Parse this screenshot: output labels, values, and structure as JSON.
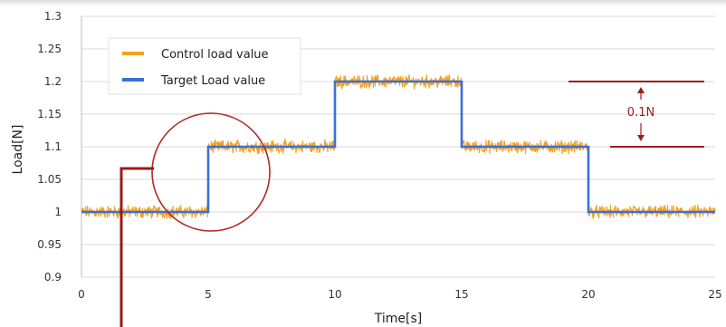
{
  "chart_data": {
    "type": "line",
    "xlabel": "Time[s]",
    "ylabel": "Load[N]",
    "xlim": [
      0,
      25
    ],
    "ylim": [
      0.9,
      1.3
    ],
    "x_ticks": [
      "0",
      "5",
      "10",
      "15",
      "20",
      "25"
    ],
    "y_ticks": [
      "0.9",
      "0.95",
      "1",
      "1.05",
      "1.1",
      "1.15",
      "1.2",
      "1.25",
      "1.3"
    ],
    "grid": "horizontal",
    "legend_position": "top-left",
    "series": [
      {
        "name": "Control load value",
        "color": "#f5a11d",
        "style": "noisy",
        "x": [
          0,
          5,
          5,
          10,
          10,
          15,
          15,
          20,
          20,
          25
        ],
        "y": [
          1.0,
          1.0,
          1.1,
          1.1,
          1.2,
          1.2,
          1.1,
          1.1,
          1.0,
          1.0
        ]
      },
      {
        "name": "Target Load value",
        "color": "#3b6fd8",
        "style": "step",
        "x": [
          0,
          5,
          5,
          10,
          10,
          15,
          15,
          20,
          20,
          25
        ],
        "y": [
          1.0,
          1.0,
          1.1,
          1.1,
          1.2,
          1.2,
          1.1,
          1.1,
          1.0,
          1.0
        ]
      }
    ],
    "annotations": {
      "step_label": "0.1N",
      "step_lines_y": [
        1.2,
        1.1
      ],
      "annotation_color": "#a01c1c"
    }
  }
}
